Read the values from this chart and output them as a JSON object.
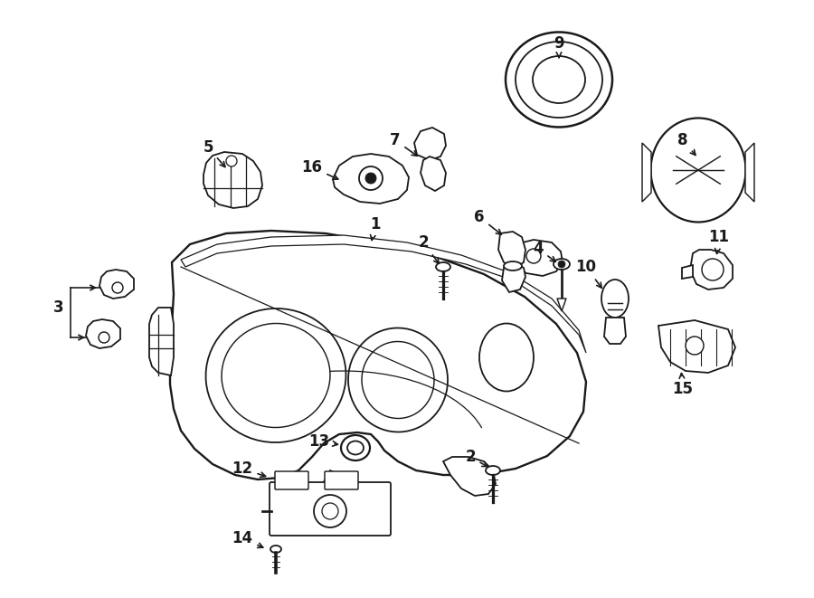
{
  "bg_color": "#ffffff",
  "line_color": "#1a1a1a",
  "lw": 1.3,
  "fig_w": 9.0,
  "fig_h": 6.61,
  "dpi": 100,
  "xlim": [
    0,
    900
  ],
  "ylim": [
    0,
    661
  ]
}
